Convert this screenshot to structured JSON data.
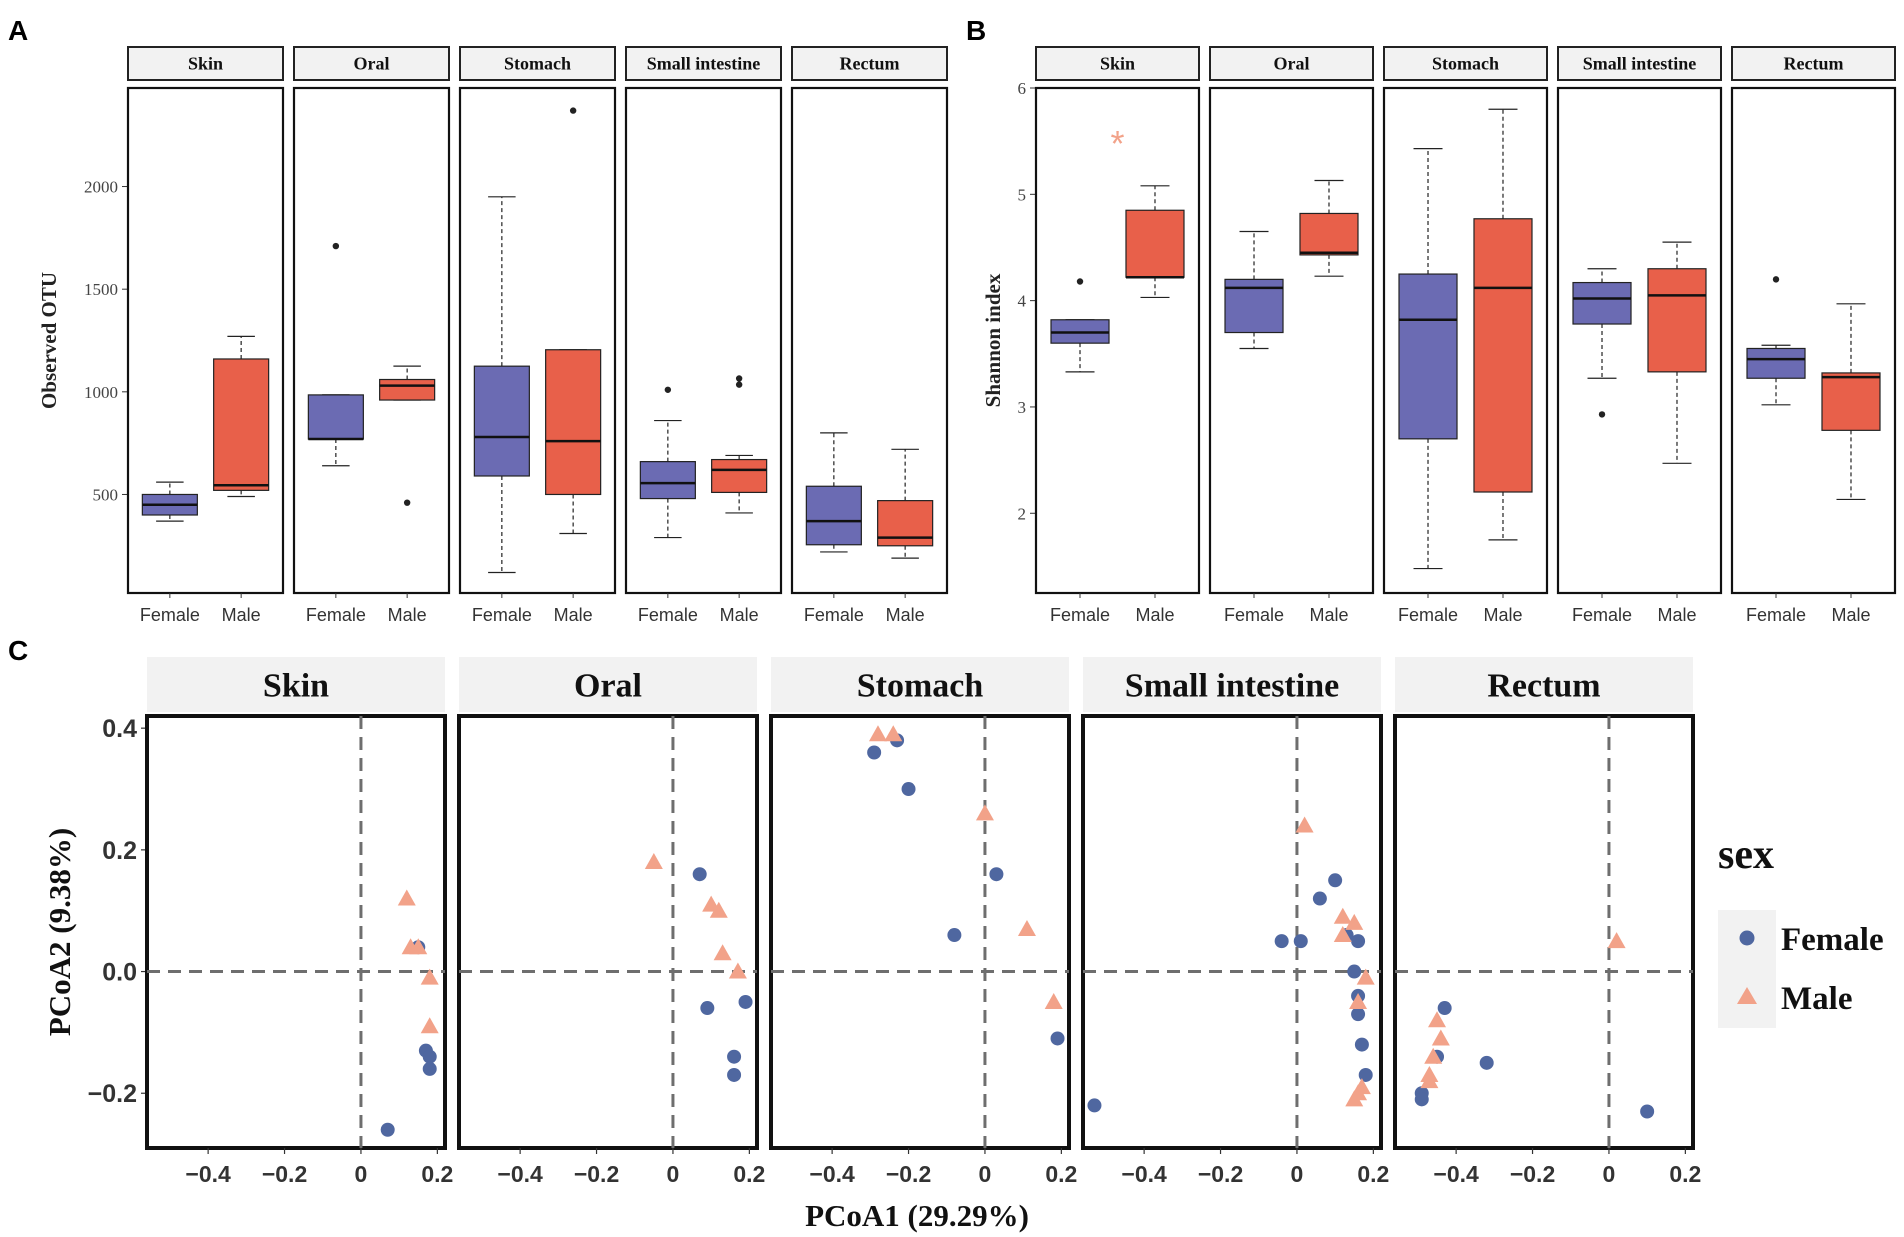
{
  "panel_letters": {
    "a": "A",
    "b": "B",
    "c": "C"
  },
  "groups": [
    "Female",
    "Male"
  ],
  "colors": {
    "female_box": "#6B6BB3",
    "male_box": "#E8604A",
    "female_point": "#4F67A0",
    "male_point": "#F2A289",
    "strip_bg": "#F2F2F2",
    "dashed": "#6E6E6E"
  },
  "chart_data": [
    {
      "id": "A",
      "type": "box",
      "ylabel": "Observed OTU",
      "ylim": [
        20,
        2480
      ],
      "yticks": [
        500,
        1000,
        1500,
        2000
      ],
      "facets": [
        {
          "name": "Skin",
          "female": {
            "whisker_low": 370,
            "q1": 400,
            "median": 450,
            "q3": 500,
            "whisker_high": 560,
            "outliers": []
          },
          "male": {
            "whisker_low": 490,
            "q1": 520,
            "median": 545,
            "q3": 1160,
            "whisker_high": 1270,
            "outliers": []
          }
        },
        {
          "name": "Oral",
          "female": {
            "whisker_low": 640,
            "q1": 770,
            "median": 770,
            "q3": 985,
            "whisker_high": 985,
            "outliers": [
              1710
            ]
          },
          "male": {
            "whisker_low": 960,
            "q1": 960,
            "median": 1030,
            "q3": 1060,
            "whisker_high": 1125,
            "outliers": [
              460
            ]
          }
        },
        {
          "name": "Stomach",
          "female": {
            "whisker_low": 120,
            "q1": 590,
            "median": 780,
            "q3": 1125,
            "whisker_high": 1950,
            "outliers": []
          },
          "male": {
            "whisker_low": 310,
            "q1": 500,
            "median": 760,
            "q3": 1205,
            "whisker_high": 1205,
            "outliers": [
              2370
            ]
          }
        },
        {
          "name": "Small intestine",
          "female": {
            "whisker_low": 290,
            "q1": 480,
            "median": 555,
            "q3": 660,
            "whisker_high": 860,
            "outliers": [
              1010
            ]
          },
          "male": {
            "whisker_low": 410,
            "q1": 510,
            "median": 620,
            "q3": 670,
            "whisker_high": 690,
            "outliers": [
              1035,
              1065
            ]
          }
        },
        {
          "name": "Rectum",
          "female": {
            "whisker_low": 220,
            "q1": 255,
            "median": 370,
            "q3": 540,
            "whisker_high": 800,
            "outliers": []
          },
          "male": {
            "whisker_low": 190,
            "q1": 250,
            "median": 290,
            "q3": 470,
            "whisker_high": 720,
            "outliers": []
          }
        }
      ]
    },
    {
      "id": "B",
      "type": "box",
      "ylabel": "Shannon index",
      "ylim": [
        1.25,
        6.0
      ],
      "yticks": [
        2,
        3,
        4,
        5,
        6
      ],
      "significance": {
        "facet": "Skin",
        "label": "*"
      },
      "facets": [
        {
          "name": "Skin",
          "female": {
            "whisker_low": 3.33,
            "q1": 3.6,
            "median": 3.7,
            "q3": 3.82,
            "whisker_high": 3.82,
            "outliers": [
              4.18
            ]
          },
          "male": {
            "whisker_low": 4.03,
            "q1": 4.22,
            "median": 4.22,
            "q3": 4.85,
            "whisker_high": 5.08,
            "outliers": []
          }
        },
        {
          "name": "Oral",
          "female": {
            "whisker_low": 3.55,
            "q1": 3.7,
            "median": 4.12,
            "q3": 4.2,
            "whisker_high": 4.65,
            "outliers": []
          },
          "male": {
            "whisker_low": 4.23,
            "q1": 4.43,
            "median": 4.45,
            "q3": 4.82,
            "whisker_high": 5.13,
            "outliers": []
          }
        },
        {
          "name": "Stomach",
          "female": {
            "whisker_low": 1.48,
            "q1": 2.7,
            "median": 3.82,
            "q3": 4.25,
            "whisker_high": 5.43,
            "outliers": []
          },
          "male": {
            "whisker_low": 1.75,
            "q1": 2.2,
            "median": 4.12,
            "q3": 4.77,
            "whisker_high": 5.8,
            "outliers": []
          }
        },
        {
          "name": "Small intestine",
          "female": {
            "whisker_low": 3.27,
            "q1": 3.78,
            "median": 4.02,
            "q3": 4.17,
            "whisker_high": 4.3,
            "outliers": [
              2.93
            ]
          },
          "male": {
            "whisker_low": 2.47,
            "q1": 3.33,
            "median": 4.05,
            "q3": 4.3,
            "whisker_high": 4.55,
            "outliers": []
          }
        },
        {
          "name": "Rectum",
          "female": {
            "whisker_low": 3.02,
            "q1": 3.27,
            "median": 3.45,
            "q3": 3.55,
            "whisker_high": 3.58,
            "outliers": [
              4.2
            ]
          },
          "male": {
            "whisker_low": 2.13,
            "q1": 2.78,
            "median": 3.28,
            "q3": 3.32,
            "whisker_high": 3.97,
            "outliers": []
          }
        }
      ]
    },
    {
      "id": "C",
      "type": "scatter",
      "xlabel": "PCoA1 (29.29%)",
      "ylabel": "PCoA2 (9.38%)",
      "xlim": [
        -0.56,
        0.22
      ],
      "ylim": [
        -0.29,
        0.42
      ],
      "xticks": [
        -0.4,
        -0.2,
        0,
        0.2
      ],
      "xtick_labels": [
        "−0.4",
        "−0.2",
        "0",
        "0.2"
      ],
      "yticks": [
        -0.2,
        0,
        0.2,
        0.4
      ],
      "ytick_labels": [
        "−0.2",
        "0.0",
        "0.2",
        "0.4"
      ],
      "legend": {
        "title": "sex",
        "entries": [
          "Female",
          "Male"
        ],
        "position": "right"
      },
      "facets": [
        {
          "name": "Skin",
          "female": [
            [
              0.15,
              0.04
            ],
            [
              0.17,
              -0.13
            ],
            [
              0.18,
              -0.14
            ],
            [
              0.18,
              -0.16
            ],
            [
              0.07,
              -0.26
            ]
          ],
          "male": [
            [
              0.12,
              0.12
            ],
            [
              0.13,
              0.04
            ],
            [
              0.15,
              0.04
            ],
            [
              0.18,
              -0.01
            ],
            [
              0.18,
              -0.09
            ]
          ]
        },
        {
          "name": "Oral",
          "female": [
            [
              0.07,
              0.16
            ],
            [
              0.09,
              -0.06
            ],
            [
              0.19,
              -0.05
            ],
            [
              0.16,
              -0.14
            ],
            [
              0.16,
              -0.17
            ]
          ],
          "male": [
            [
              -0.05,
              0.18
            ],
            [
              0.1,
              0.11
            ],
            [
              0.12,
              0.1
            ],
            [
              0.13,
              0.03
            ],
            [
              0.17,
              0.0
            ]
          ]
        },
        {
          "name": "Stomach",
          "female": [
            [
              -0.29,
              0.36
            ],
            [
              -0.23,
              0.38
            ],
            [
              -0.2,
              0.3
            ],
            [
              0.03,
              0.16
            ],
            [
              -0.08,
              0.06
            ],
            [
              0.19,
              -0.11
            ]
          ],
          "male": [
            [
              -0.28,
              0.39
            ],
            [
              -0.24,
              0.39
            ],
            [
              0.0,
              0.26
            ],
            [
              0.11,
              0.07
            ],
            [
              0.18,
              -0.05
            ]
          ]
        },
        {
          "name": "Small intestine",
          "female": [
            [
              0.1,
              0.15
            ],
            [
              0.06,
              0.12
            ],
            [
              -0.04,
              0.05
            ],
            [
              0.01,
              0.05
            ],
            [
              0.13,
              0.06
            ],
            [
              0.16,
              0.05
            ],
            [
              0.15,
              0.0
            ],
            [
              0.16,
              -0.04
            ],
            [
              0.16,
              -0.07
            ],
            [
              0.17,
              -0.12
            ],
            [
              0.18,
              -0.17
            ],
            [
              -0.53,
              -0.22
            ]
          ],
          "male": [
            [
              0.02,
              0.24
            ],
            [
              0.12,
              0.09
            ],
            [
              0.15,
              0.08
            ],
            [
              0.12,
              0.06
            ],
            [
              0.18,
              -0.01
            ],
            [
              0.16,
              -0.05
            ],
            [
              0.17,
              -0.19
            ],
            [
              0.16,
              -0.2
            ],
            [
              0.15,
              -0.21
            ]
          ]
        },
        {
          "name": "Rectum",
          "female": [
            [
              -0.43,
              -0.06
            ],
            [
              -0.45,
              -0.14
            ],
            [
              -0.32,
              -0.15
            ],
            [
              -0.49,
              -0.2
            ],
            [
              -0.49,
              -0.21
            ],
            [
              0.1,
              -0.23
            ]
          ],
          "male": [
            [
              0.02,
              0.05
            ],
            [
              -0.45,
              -0.08
            ],
            [
              -0.44,
              -0.11
            ],
            [
              -0.46,
              -0.14
            ],
            [
              -0.47,
              -0.17
            ],
            [
              -0.47,
              -0.18
            ]
          ]
        }
      ]
    }
  ]
}
